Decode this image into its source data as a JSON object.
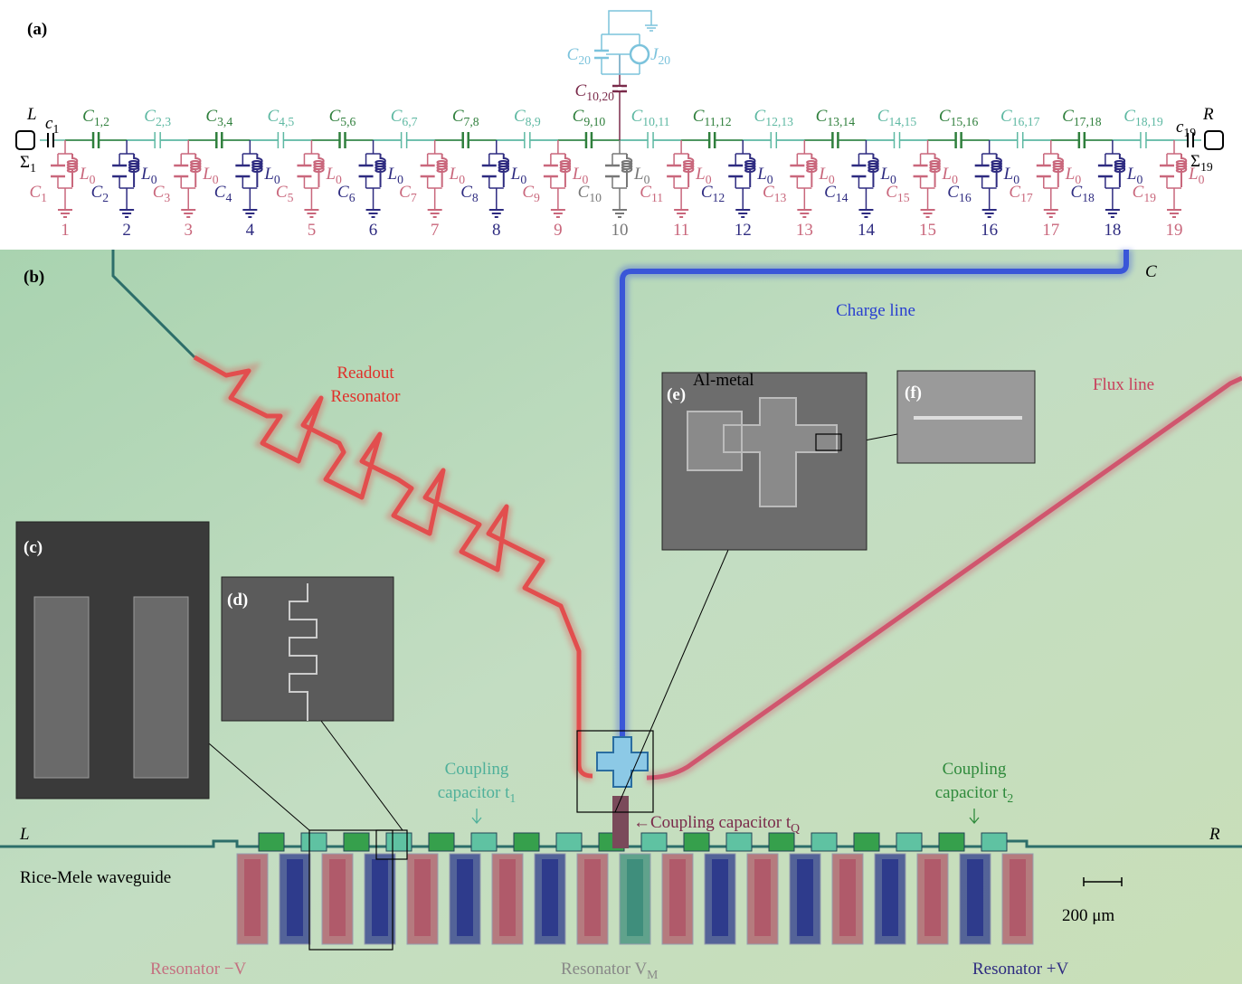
{
  "panel_a": {
    "label": "(a)",
    "left": "L",
    "right": "R",
    "c_left": {
      "main": "c",
      "sub": "1"
    },
    "c_right": {
      "main": "c",
      "sub": "19"
    },
    "sigma_left": {
      "main": "Σ",
      "sub": "1"
    },
    "sigma_right": {
      "main": "Σ",
      "sub": "19"
    },
    "qubit": {
      "capacitor": {
        "main": "C",
        "sub": "20"
      },
      "junction": {
        "main": "J",
        "sub": "20"
      },
      "coupling": {
        "main": "C",
        "sub": "10,20"
      }
    },
    "couplings": [
      {
        "main": "C",
        "sub": "1,2"
      },
      {
        "main": "C",
        "sub": "2,3"
      },
      {
        "main": "C",
        "sub": "3,4"
      },
      {
        "main": "C",
        "sub": "4,5"
      },
      {
        "main": "C",
        "sub": "5,6"
      },
      {
        "main": "C",
        "sub": "6,7"
      },
      {
        "main": "C",
        "sub": "7,8"
      },
      {
        "main": "C",
        "sub": "8,9"
      },
      {
        "main": "C",
        "sub": "9,10"
      },
      {
        "main": "C",
        "sub": "10,11"
      },
      {
        "main": "C",
        "sub": "11,12"
      },
      {
        "main": "C",
        "sub": "12,13"
      },
      {
        "main": "C",
        "sub": "13,14"
      },
      {
        "main": "C",
        "sub": "14,15"
      },
      {
        "main": "C",
        "sub": "15,16"
      },
      {
        "main": "C",
        "sub": "16,17"
      },
      {
        "main": "C",
        "sub": "17,18"
      },
      {
        "main": "C",
        "sub": "18,19"
      }
    ],
    "nodes": [
      {
        "capacitor": {
          "main": "C",
          "sub": "1"
        },
        "inductor": {
          "main": "L",
          "sub": "0"
        },
        "number": "1"
      },
      {
        "capacitor": {
          "main": "C",
          "sub": "2"
        },
        "inductor": {
          "main": "L",
          "sub": "0"
        },
        "number": "2"
      },
      {
        "capacitor": {
          "main": "C",
          "sub": "3"
        },
        "inductor": {
          "main": "L",
          "sub": "0"
        },
        "number": "3"
      },
      {
        "capacitor": {
          "main": "C",
          "sub": "4"
        },
        "inductor": {
          "main": "L",
          "sub": "0"
        },
        "number": "4"
      },
      {
        "capacitor": {
          "main": "C",
          "sub": "5"
        },
        "inductor": {
          "main": "L",
          "sub": "0"
        },
        "number": "5"
      },
      {
        "capacitor": {
          "main": "C",
          "sub": "6"
        },
        "inductor": {
          "main": "L",
          "sub": "0"
        },
        "number": "6"
      },
      {
        "capacitor": {
          "main": "C",
          "sub": "7"
        },
        "inductor": {
          "main": "L",
          "sub": "0"
        },
        "number": "7"
      },
      {
        "capacitor": {
          "main": "C",
          "sub": "8"
        },
        "inductor": {
          "main": "L",
          "sub": "0"
        },
        "number": "8"
      },
      {
        "capacitor": {
          "main": "C",
          "sub": "9"
        },
        "inductor": {
          "main": "L",
          "sub": "0"
        },
        "number": "9"
      },
      {
        "capacitor": {
          "main": "C",
          "sub": "10"
        },
        "inductor": {
          "main": "L",
          "sub": "0"
        },
        "number": "10"
      },
      {
        "capacitor": {
          "main": "C",
          "sub": "11"
        },
        "inductor": {
          "main": "L",
          "sub": "0"
        },
        "number": "11"
      },
      {
        "capacitor": {
          "main": "C",
          "sub": "12"
        },
        "inductor": {
          "main": "L",
          "sub": "0"
        },
        "number": "12"
      },
      {
        "capacitor": {
          "main": "C",
          "sub": "13"
        },
        "inductor": {
          "main": "L",
          "sub": "0"
        },
        "number": "13"
      },
      {
        "capacitor": {
          "main": "C",
          "sub": "14"
        },
        "inductor": {
          "main": "L",
          "sub": "0"
        },
        "number": "14"
      },
      {
        "capacitor": {
          "main": "C",
          "sub": "15"
        },
        "inductor": {
          "main": "L",
          "sub": "0"
        },
        "number": "15"
      },
      {
        "capacitor": {
          "main": "C",
          "sub": "16"
        },
        "inductor": {
          "main": "L",
          "sub": "0"
        },
        "number": "16"
      },
      {
        "capacitor": {
          "main": "C",
          "sub": "17"
        },
        "inductor": {
          "main": "L",
          "sub": "0"
        },
        "number": "17"
      },
      {
        "capacitor": {
          "main": "C",
          "sub": "18"
        },
        "inductor": {
          "main": "L",
          "sub": "0"
        },
        "number": "18"
      },
      {
        "capacitor": {
          "main": "C",
          "sub": "19"
        },
        "inductor": {
          "main": "L",
          "sub": "0"
        },
        "number": "19"
      }
    ]
  },
  "panel_b": {
    "label": "(b)",
    "charge_port": "C",
    "charge_line": "Charge line",
    "readout_1": "Readout",
    "readout_2": "Resonator",
    "flux_line": "Flux line",
    "inset_c": "(c)",
    "inset_d": "(d)",
    "inset_e": "(e)",
    "inset_e_note": "Al-metal",
    "inset_f": "(f)",
    "coupling_t1_1": "Coupling",
    "coupling_t1_2": {
      "main": "capacitor t",
      "sub": "1"
    },
    "coupling_t2_1": "Coupling",
    "coupling_t2_2": {
      "main": "capacitor t",
      "sub": "2"
    },
    "coupling_tq": {
      "main": "←Coupling capacitor t",
      "sub": "Q"
    },
    "left": "L",
    "right": "R",
    "waveguide": "Rice-Mele waveguide",
    "scale": "200 μm",
    "res_minus": "Resonator −V",
    "res_mid": {
      "main": "Resonator V",
      "sub": "M"
    },
    "res_plus": "Resonator +V"
  }
}
